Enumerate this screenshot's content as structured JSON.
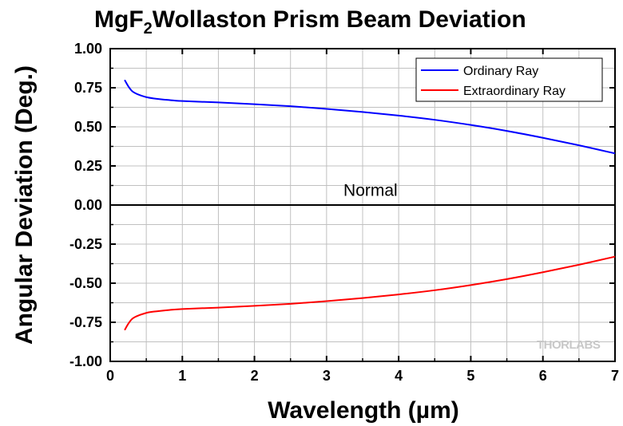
{
  "chart_data": {
    "type": "line",
    "title": "MgF",
    "title_subscript": "2",
    "title_rest": "Wollaston Prism Beam Deviation",
    "xlabel": "Wavelength (µm)",
    "ylabel": "Angular Deviation (Deg.)",
    "xlim": [
      0,
      7
    ],
    "ylim": [
      -1.0,
      1.0
    ],
    "xticks": [
      "0",
      "1",
      "2",
      "3",
      "4",
      "5",
      "6",
      "7"
    ],
    "xtick_values": [
      0,
      1,
      2,
      3,
      4,
      5,
      6,
      7
    ],
    "yticks": [
      "1.00",
      "0.75",
      "0.50",
      "0.25",
      "0.00",
      "-0.25",
      "-0.50",
      "-0.75",
      "-1.00"
    ],
    "ytick_values": [
      1.0,
      0.75,
      0.5,
      0.25,
      0.0,
      -0.25,
      -0.5,
      -0.75,
      -1.0
    ],
    "grid": true,
    "legend_position": "top-right",
    "x": [
      0.2,
      0.25,
      0.3,
      0.35,
      0.4,
      0.5,
      0.6,
      0.8,
      1.0,
      1.5,
      2.0,
      2.5,
      3.0,
      3.5,
      4.0,
      4.5,
      5.0,
      5.5,
      6.0,
      6.5,
      7.0
    ],
    "series": [
      {
        "name": "Ordinary Ray",
        "color": "#0000ff",
        "values": [
          0.8,
          0.76,
          0.73,
          0.715,
          0.705,
          0.69,
          0.682,
          0.672,
          0.665,
          0.656,
          0.645,
          0.632,
          0.615,
          0.595,
          0.572,
          0.545,
          0.512,
          0.474,
          0.43,
          0.382,
          0.33
        ]
      },
      {
        "name": "Extraordinary Ray",
        "color": "#ff0000",
        "values": [
          -0.8,
          -0.76,
          -0.73,
          -0.715,
          -0.705,
          -0.69,
          -0.682,
          -0.672,
          -0.665,
          -0.656,
          -0.645,
          -0.632,
          -0.615,
          -0.595,
          -0.572,
          -0.545,
          -0.512,
          -0.474,
          -0.43,
          -0.382,
          -0.33
        ]
      }
    ],
    "annotations": [
      {
        "text": "Normal",
        "x": 3.7,
        "y": 0.1
      }
    ],
    "watermark": "THORLABS"
  }
}
